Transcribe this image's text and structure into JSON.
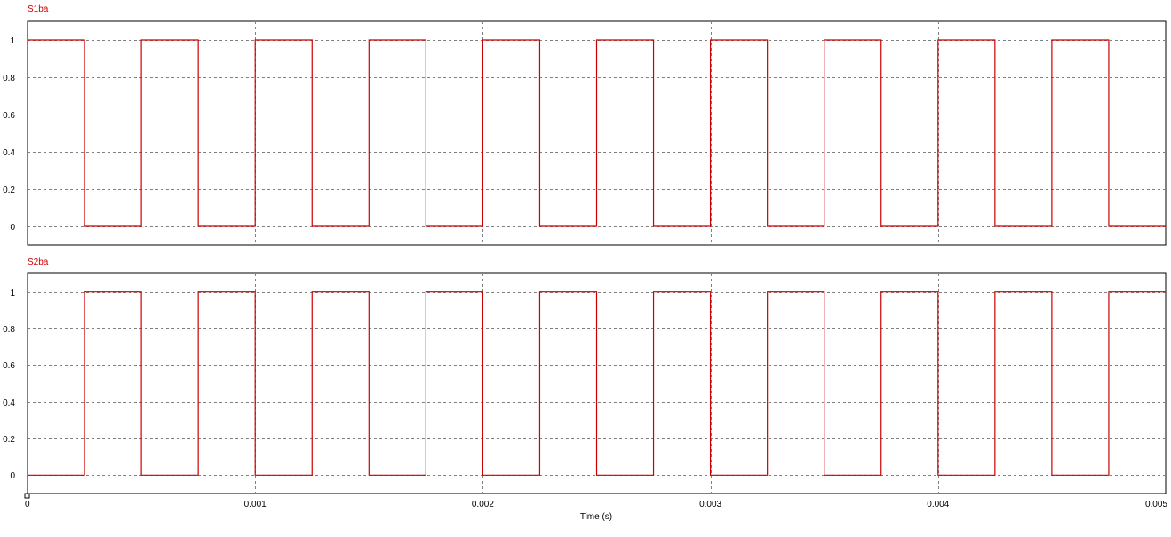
{
  "colors": {
    "trace": "#cc0000",
    "frame": "#000000",
    "grid": "#808080",
    "background": "#ffffff"
  },
  "chart_data": [
    {
      "type": "line",
      "title": "S1ba",
      "xlim": [
        0,
        0.005
      ],
      "ylim": [
        -0.1,
        1.1
      ],
      "grid": true,
      "yticks": [
        {
          "value": 1,
          "label": "1"
        },
        {
          "value": 0.8,
          "label": "0.8"
        },
        {
          "value": 0.6,
          "label": "0.6"
        },
        {
          "value": 0.4,
          "label": "0.4"
        },
        {
          "value": 0.2,
          "label": "0.2"
        },
        {
          "value": 0,
          "label": "0"
        }
      ],
      "series": [
        {
          "x": [
            0,
            0.00025,
            0.00025,
            0.0005,
            0.0005,
            0.00075,
            0.00075,
            0.001,
            0.001,
            0.00125,
            0.00125,
            0.00125,
            0.00125,
            0.0015,
            0.0015,
            0.0015,
            0.0015,
            0.00175,
            0.00175,
            0.002,
            0.002,
            0.00225,
            0.00225,
            0.0025,
            0.0025,
            0.00275,
            0.00275,
            0.003,
            0.003,
            0.003,
            0.003,
            0.00325,
            0.00325,
            0.00325,
            0.00325,
            0.0035,
            0.0035,
            0.00375,
            0.00375,
            0.004,
            0.004,
            0.00425,
            0.00425,
            0.0045,
            0.0045,
            0.00475,
            0.00475,
            0.00475,
            0.00475,
            0.005
          ],
          "y": [
            1,
            1,
            0,
            0,
            1,
            1,
            0,
            0,
            1,
            1,
            0.5,
            0.5,
            0,
            0,
            0.5,
            0.5,
            1,
            1,
            0,
            0,
            1,
            1,
            0,
            0,
            1,
            1,
            0,
            0,
            0.5,
            0.5,
            1,
            1,
            0.5,
            0.5,
            0,
            0,
            1,
            1,
            0,
            0,
            1,
            1,
            0,
            0,
            1,
            1,
            0.5,
            0.5,
            0,
            0
          ]
        }
      ]
    },
    {
      "type": "line",
      "title": "S2ba",
      "xlabel": "Time (s)",
      "xlim": [
        0,
        0.005
      ],
      "ylim": [
        -0.1,
        1.1
      ],
      "grid": true,
      "xticks": [
        {
          "value": 0,
          "label": "0"
        },
        {
          "value": 0.001,
          "label": "0.001"
        },
        {
          "value": 0.002,
          "label": "0.002"
        },
        {
          "value": 0.003,
          "label": "0.003"
        },
        {
          "value": 0.004,
          "label": "0.004"
        },
        {
          "value": 0.005,
          "label": "0.005"
        }
      ],
      "yticks": [
        {
          "value": 1,
          "label": "1"
        },
        {
          "value": 0.8,
          "label": "0.8"
        },
        {
          "value": 0.6,
          "label": "0.6"
        },
        {
          "value": 0.4,
          "label": "0.4"
        },
        {
          "value": 0.2,
          "label": "0.2"
        },
        {
          "value": 0,
          "label": "0"
        }
      ],
      "series": [
        {
          "x": [
            0,
            0.00025,
            0.00025,
            0.0005,
            0.0005,
            0.00075,
            0.00075,
            0.001,
            0.001,
            0.00125,
            0.00125,
            0.00125,
            0.00125,
            0.0015,
            0.0015,
            0.0015,
            0.0015,
            0.00175,
            0.00175,
            0.002,
            0.002,
            0.00225,
            0.00225,
            0.0025,
            0.0025,
            0.00275,
            0.00275,
            0.003,
            0.003,
            0.003,
            0.003,
            0.00325,
            0.00325,
            0.00325,
            0.00325,
            0.0035,
            0.0035,
            0.00375,
            0.00375,
            0.004,
            0.004,
            0.00425,
            0.00425,
            0.0045,
            0.0045,
            0.00475,
            0.00475,
            0.00475,
            0.00475,
            0.005
          ],
          "y": [
            0,
            0,
            1,
            1,
            0,
            0,
            1,
            1,
            0,
            0,
            0.5,
            0.5,
            1,
            1,
            0.5,
            0.5,
            0,
            0,
            1,
            1,
            0,
            0,
            1,
            1,
            0,
            0,
            1,
            1,
            0.5,
            0.5,
            0,
            0,
            0.5,
            0.5,
            1,
            1,
            0,
            0,
            1,
            1,
            0,
            0,
            1,
            1,
            0,
            0,
            0.5,
            0.5,
            1,
            1
          ]
        }
      ]
    }
  ]
}
